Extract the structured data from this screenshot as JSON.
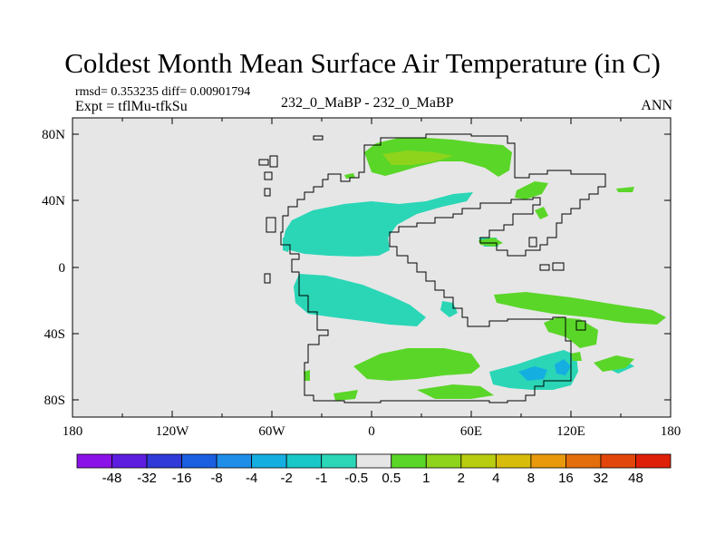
{
  "title": "Coldest Month Mean Surface Air Temperature (in C)",
  "stats": "rmsd= 0.353235  diff= 0.00901794",
  "expt": "Expt = tflMu-tfkSu",
  "subtitle": "232_0_MaBP - 232_0_MaBP",
  "season": "ANN",
  "colors": {
    "background": "#e6e6e6",
    "coastline": "#000000"
  },
  "axes": {
    "lon_ticks": [
      "180",
      "120W",
      "60W",
      "0",
      "60E",
      "120E",
      "180"
    ],
    "lat_ticks": [
      "80N",
      "40N",
      "0",
      "40S",
      "80S"
    ]
  },
  "colorbar": {
    "labels": [
      "-48",
      "-32",
      "-16",
      "-8",
      "-4",
      "-2",
      "-1",
      "-0.5",
      "0.5",
      "1",
      "2",
      "4",
      "8",
      "16",
      "32",
      "48"
    ],
    "colors": [
      "#8a12e8",
      "#5d1ee0",
      "#2f3ad8",
      "#1a5fe0",
      "#1f8ee8",
      "#15aee0",
      "#18c8c8",
      "#2ad6b6",
      "#e6e6e6",
      "#5ad628",
      "#8fd41c",
      "#b8cc10",
      "#d8bc0c",
      "#e89a0c",
      "#e46e0c",
      "#e2460a",
      "#de2008"
    ]
  }
}
